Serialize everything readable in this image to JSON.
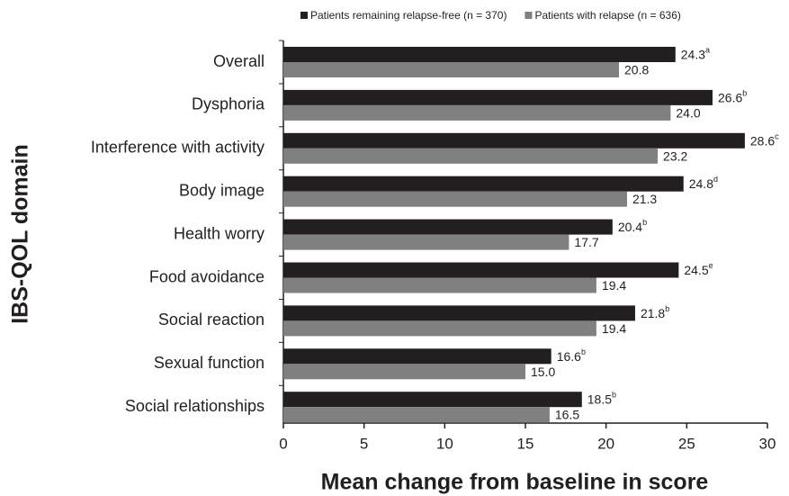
{
  "chart_data": {
    "type": "bar",
    "orientation": "horizontal",
    "xlabel": "Mean change from baseline in score",
    "ylabel": "IBS-QOL domain",
    "categories": [
      "Overall",
      "Dysphoria",
      "Interference with activity",
      "Body image",
      "Health worry",
      "Food avoidance",
      "Social reaction",
      "Sexual function",
      "Social relationships"
    ],
    "series": [
      {
        "name": "Patients remaining relapse-free (n = 370)",
        "color": "#231f20",
        "values": [
          24.3,
          26.6,
          28.6,
          24.8,
          20.4,
          24.5,
          21.8,
          16.6,
          18.5
        ],
        "value_labels": [
          "24.3",
          "26.6",
          "28.6",
          "24.8",
          "20.4",
          "24.5",
          "21.8",
          "16.6",
          "18.5"
        ],
        "superscripts": [
          "a",
          "b",
          "c",
          "d",
          "b",
          "e",
          "b",
          "b",
          "b"
        ]
      },
      {
        "name": "Patients with relapse (n = 636)",
        "color": "#808080",
        "values": [
          20.8,
          24.0,
          23.2,
          21.3,
          17.7,
          19.4,
          19.4,
          15.0,
          16.5
        ],
        "value_labels": [
          "20.8",
          "24.0",
          "23.2",
          "21.3",
          "17.7",
          "19.4",
          "19.4",
          "15.0",
          "16.5"
        ]
      }
    ],
    "xlim": [
      0,
      30
    ],
    "xticks": [
      0,
      5,
      10,
      15,
      20,
      25,
      30
    ],
    "legend": "top"
  }
}
